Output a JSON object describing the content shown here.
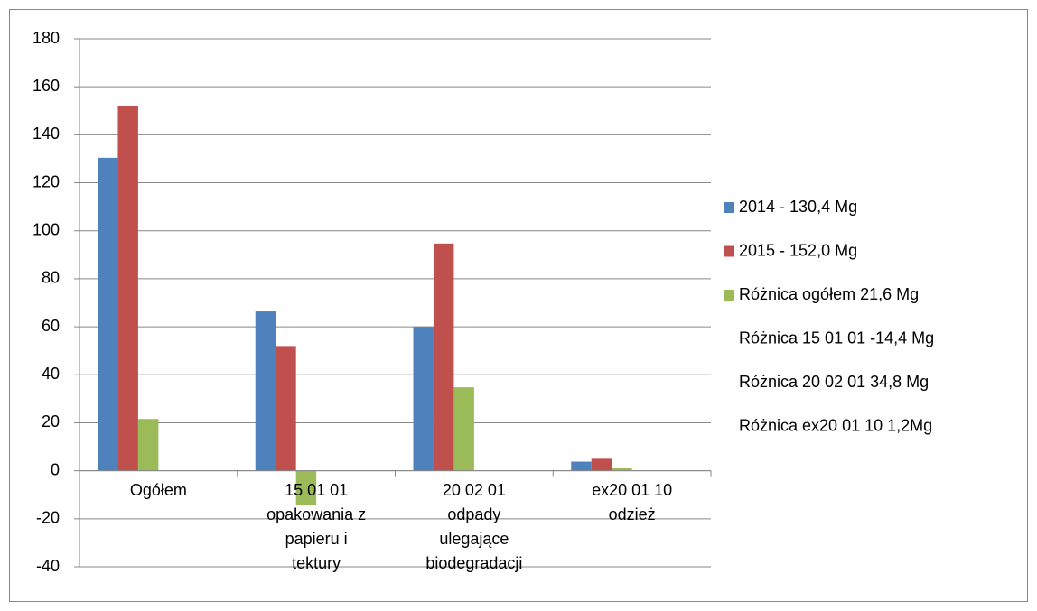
{
  "chart_data": {
    "type": "bar",
    "categories": [
      "Ogółem",
      "15 01 01 opakowania z papieru i tektury",
      "20 02 01 odpady ulegające biodegradacji",
      "ex20 01 10 odzież"
    ],
    "series": [
      {
        "name": "2014 - 130,4 Mg",
        "color": "#4f81bd",
        "values": [
          130.4,
          66.4,
          59.9,
          3.8
        ]
      },
      {
        "name": "2015 - 152,0 Mg",
        "color": "#c0504d",
        "values": [
          152.0,
          52.0,
          94.7,
          5.0
        ]
      },
      {
        "name": "Różnica ogółem 21,6 Mg",
        "color": "#9bbb59",
        "values": [
          21.6,
          -14.4,
          34.8,
          1.2
        ]
      },
      {
        "name": "Różnica 15 01 01 -14,4 Mg",
        "color": null,
        "values": [
          null,
          null,
          null,
          null
        ]
      },
      {
        "name": "Różnica 20 02 01 34,8 Mg",
        "color": null,
        "values": [
          null,
          null,
          null,
          null
        ]
      },
      {
        "name": "Różnica ex20 01 10 1,2Mg",
        "color": null,
        "values": [
          null,
          null,
          null,
          null
        ]
      }
    ],
    "ylim": [
      -40,
      180
    ],
    "yticks": [
      -40,
      -20,
      0,
      20,
      40,
      60,
      80,
      100,
      120,
      140,
      160,
      180
    ],
    "grid": true,
    "legend": "right"
  }
}
